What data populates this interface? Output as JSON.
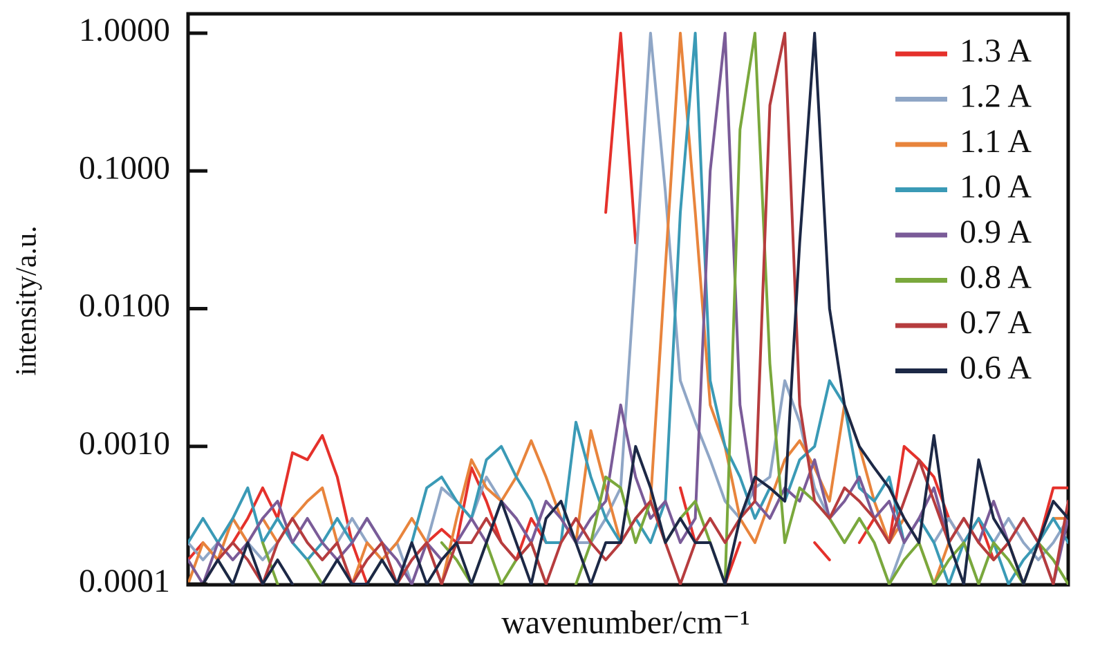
{
  "chart_data": {
    "type": "line",
    "x_label": "wavenumber/cm⁻¹",
    "y_label": "intensity/a.u.",
    "y_log": true,
    "grid": false,
    "legend": "upper right",
    "ylim": [
      0.0001,
      1
    ],
    "yticks": [
      {
        "value": 1,
        "label": "1.0000"
      },
      {
        "value": 0.1,
        "label": "0.1000"
      },
      {
        "value": 0.01,
        "label": "0.0100"
      },
      {
        "value": 0.001,
        "label": "0.0010"
      },
      {
        "value": 0.0001,
        "label": "0.0001"
      }
    ],
    "categories": [
      null,
      null,
      null,
      null,
      null,
      null,
      null,
      null,
      null,
      null,
      null,
      null,
      null,
      null,
      null,
      null,
      null,
      null,
      null,
      null,
      null,
      null,
      null,
      null,
      null,
      null,
      null,
      null,
      null,
      null,
      null,
      null,
      null,
      null,
      null,
      null,
      null,
      null,
      null,
      null,
      null,
      null,
      null,
      null,
      null,
      null,
      null,
      null,
      null,
      null,
      null,
      null,
      null,
      null,
      null,
      null,
      null,
      null,
      null,
      null
    ],
    "series": [
      {
        "name": "1.3 A",
        "color": "#e5312b",
        "values": [
          0.00015,
          0.0002,
          0.00015,
          0.0002,
          0.0003,
          0.0005,
          0.0003,
          0.0009,
          0.0008,
          0.0012,
          0.0006,
          0.0002,
          0.0001,
          null,
          null,
          0.00015,
          0.0002,
          0.00025,
          0.0002,
          0.0007,
          0.0004,
          0.0002,
          0.00015,
          0.0003,
          0.0002,
          null,
          null,
          null,
          0.05,
          1.0,
          0.03,
          null,
          null,
          0.0005,
          0.0002,
          null,
          0.0001,
          0.0002,
          null,
          null,
          null,
          null,
          0.0002,
          0.00015,
          null,
          0.0002,
          0.0003,
          0.0002,
          0.001,
          0.0008,
          0.0006,
          0.0003,
          0.0002,
          0.0003,
          0.00015,
          0.0002,
          0.0001,
          0.0002,
          0.0005,
          0.0005
        ]
      },
      {
        "name": "1.2 A",
        "color": "#8fa6c6",
        "values": [
          0.0002,
          0.00015,
          0.0002,
          0.0003,
          0.0002,
          0.00015,
          0.0002,
          0.0003,
          0.0002,
          0.00015,
          0.0002,
          0.0003,
          0.0002,
          0.00015,
          0.0002,
          0.0001,
          0.0002,
          0.0005,
          0.0004,
          0.0003,
          0.0006,
          0.0004,
          0.0003,
          0.0002,
          0.0004,
          0.0003,
          0.0002,
          0.0002,
          0.0003,
          0.0005,
          0.02,
          1.0,
          0.07,
          0.003,
          0.0015,
          0.0008,
          0.0004,
          0.0003,
          0.0005,
          0.0006,
          0.003,
          0.0015,
          0.0005,
          0.0003,
          0.0002,
          0.0003,
          0.0002,
          0.0001,
          0.0002,
          0.0003,
          0.0002,
          0.0003,
          0.0002,
          0.0001,
          0.0002,
          0.0003,
          0.0002,
          0.00015,
          0.0002,
          0.0003
        ]
      },
      {
        "name": "1.1 A",
        "color": "#e8843c",
        "values": [
          0.0001,
          0.0002,
          0.00015,
          0.0003,
          0.0002,
          0.0003,
          0.0002,
          0.0003,
          0.0004,
          0.0005,
          0.0002,
          0.0001,
          0.0002,
          0.00015,
          0.0002,
          0.0003,
          0.0002,
          0.0001,
          0.0003,
          0.0008,
          0.0005,
          0.0004,
          0.0006,
          0.0011,
          0.0006,
          0.0003,
          0.0002,
          0.0013,
          0.0005,
          0.0002,
          0.0003,
          0.0004,
          0.02,
          1.0,
          0.05,
          0.002,
          0.001,
          0.0003,
          0.0002,
          0.0004,
          0.0008,
          0.0011,
          0.0007,
          0.0004,
          0.002,
          0.001,
          0.0004,
          0.0002,
          0.0003,
          0.0002,
          0.0001,
          0.0002,
          0.0003,
          0.0002,
          0.00015,
          0.0002,
          0.0001,
          0.0002,
          0.0003,
          0.0003
        ]
      },
      {
        "name": "1.0 A",
        "color": "#3a9ab6",
        "values": [
          0.0002,
          0.0003,
          0.0002,
          0.0003,
          0.0005,
          0.0002,
          0.0003,
          0.0002,
          0.00015,
          0.0002,
          0.0003,
          0.0002,
          0.0003,
          0.0002,
          0.0001,
          0.0002,
          0.0005,
          0.0006,
          0.0004,
          0.0003,
          0.0008,
          0.001,
          0.0006,
          0.0004,
          0.0002,
          0.0002,
          0.0015,
          0.0006,
          0.0003,
          0.0002,
          0.0003,
          0.0002,
          0.0004,
          0.05,
          1.0,
          0.003,
          0.001,
          0.0006,
          0.0003,
          0.0005,
          0.0004,
          0.0008,
          0.001,
          0.003,
          0.002,
          0.0005,
          0.0004,
          0.0006,
          0.0002,
          0.0003,
          0.0002,
          0.0001,
          0.0002,
          0.0003,
          0.0002,
          0.0001,
          0.00015,
          0.0002,
          0.0003,
          0.0002
        ]
      },
      {
        "name": "0.9 A",
        "color": "#7a5b98",
        "values": [
          0.00015,
          0.0001,
          0.0002,
          0.00015,
          0.0002,
          0.0003,
          0.0004,
          0.0002,
          0.0003,
          0.0002,
          0.00015,
          0.0002,
          0.0003,
          0.0002,
          0.00015,
          0.0001,
          0.0002,
          0.00015,
          0.0002,
          0.0003,
          0.0002,
          0.0004,
          0.0003,
          0.0002,
          0.0004,
          0.0003,
          0.0002,
          0.0003,
          0.0004,
          0.002,
          0.0006,
          0.0003,
          0.0004,
          0.0002,
          0.0003,
          0.1,
          1.0,
          0.002,
          0.0004,
          0.0003,
          0.0005,
          0.0004,
          0.0008,
          0.0003,
          0.0004,
          0.0006,
          0.0003,
          0.0004,
          0.0002,
          0.0003,
          0.0005,
          0.0002,
          0.0003,
          0.0002,
          0.0004,
          0.0002,
          0.0003,
          0.0002,
          0.0001,
          0.0003
        ]
      },
      {
        "name": "0.8 A",
        "color": "#7aa83c",
        "values": [
          0.0001,
          null,
          0.00015,
          0.0001,
          null,
          0.0002,
          0.0001,
          null,
          0.00015,
          0.0001,
          null,
          null,
          0.0001,
          0.00015,
          null,
          0.0001,
          null,
          0.0002,
          0.00015,
          0.0001,
          0.0002,
          0.0001,
          0.00015,
          0.0002,
          0.0001,
          null,
          0.0001,
          0.0002,
          0.0006,
          0.0005,
          0.0002,
          0.0004,
          0.0002,
          0.0003,
          0.0004,
          0.0002,
          0.0001,
          0.2,
          1.0,
          0.004,
          0.0002,
          0.0005,
          0.0004,
          0.0003,
          0.0002,
          0.0003,
          0.0002,
          0.0001,
          0.00015,
          0.0002,
          0.0001,
          0.00015,
          0.0002,
          0.0001,
          0.0002,
          0.00015,
          0.0001,
          0.0002,
          0.00015,
          0.0001
        ]
      },
      {
        "name": "0.7 A",
        "color": "#b63c3e",
        "values": [
          null,
          0.0001,
          0.00015,
          0.0002,
          0.00015,
          0.0001,
          0.0002,
          0.0003,
          0.0002,
          0.00015,
          0.0002,
          0.0001,
          0.00015,
          0.0002,
          0.0001,
          0.00015,
          0.0002,
          0.0001,
          0.0002,
          0.0002,
          0.0003,
          0.0002,
          0.00015,
          0.0002,
          0.0001,
          0.0002,
          0.0003,
          0.0002,
          0.00015,
          0.0002,
          0.0003,
          0.0004,
          0.0002,
          0.0001,
          0.0002,
          0.0003,
          0.0002,
          0.0003,
          0.0004,
          0.3,
          1.0,
          0.002,
          0.0004,
          0.0003,
          0.0005,
          0.0004,
          0.0003,
          0.0002,
          0.0004,
          0.0008,
          0.0004,
          0.0002,
          0.0003,
          0.0002,
          0.00015,
          0.0002,
          0.0003,
          0.0002,
          0.0001,
          0.0004
        ]
      },
      {
        "name": "0.6 A",
        "color": "#1c2846",
        "values": [
          0.0001,
          0.0001,
          0.00015,
          0.0001,
          0.0002,
          0.0001,
          0.00015,
          0.0001,
          null,
          0.0001,
          0.00015,
          0.0001,
          0.0001,
          0.00015,
          0.0001,
          0.0002,
          0.0001,
          0.00015,
          0.0002,
          0.0001,
          0.0002,
          0.0004,
          0.0002,
          0.0001,
          0.0003,
          0.0004,
          0.0002,
          0.0001,
          0.0002,
          0.0002,
          0.001,
          0.0005,
          0.0002,
          0.0003,
          0.0002,
          0.0002,
          0.0001,
          0.0003,
          0.0006,
          0.0005,
          0.0004,
          0.03,
          1.0,
          0.01,
          0.002,
          0.001,
          0.0007,
          0.0005,
          0.0003,
          0.0002,
          0.0012,
          0.0002,
          0.0001,
          0.0008,
          0.0003,
          0.0002,
          0.0001,
          0.0002,
          0.0004,
          0.0003
        ]
      }
    ]
  }
}
